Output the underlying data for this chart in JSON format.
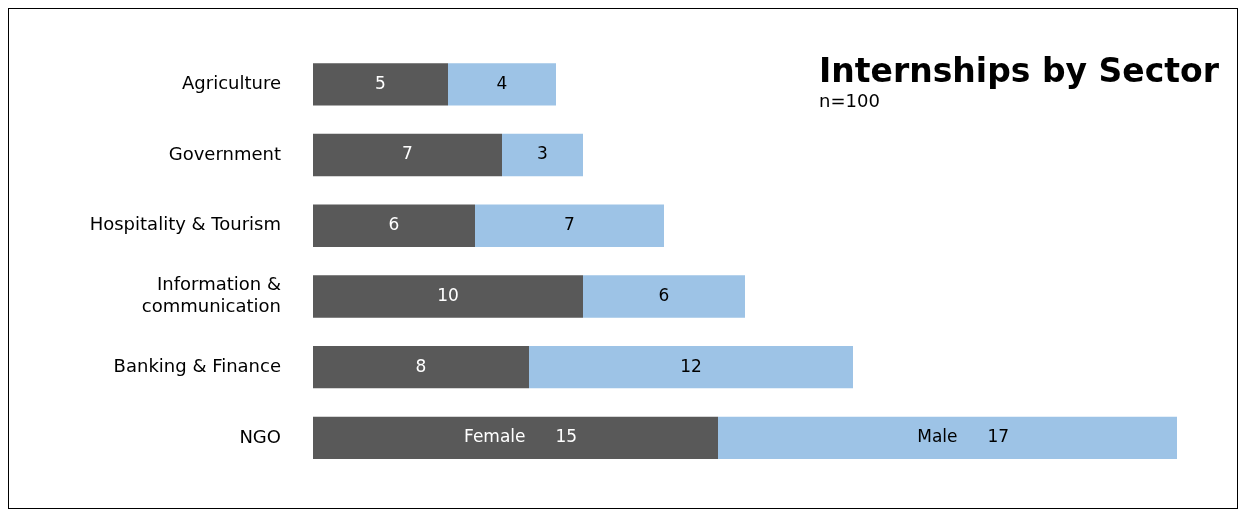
{
  "chart_data": {
    "type": "bar",
    "orientation": "horizontal",
    "stacked": true,
    "tick_labels": "y",
    "title": "Internships by Sector",
    "subtitle": "n=100",
    "categories": [
      "Agriculture",
      "Government",
      "Hospitality & Tourism",
      "Information & communication",
      "Banking & Finance",
      "NGO"
    ],
    "series": [
      {
        "name": "Female",
        "color": "#595959",
        "values": [
          5,
          7,
          6,
          10,
          8,
          15
        ]
      },
      {
        "name": "Male",
        "color": "#9dc3e6",
        "values": [
          4,
          3,
          7,
          6,
          12,
          17
        ]
      }
    ],
    "data_labels": true
  }
}
